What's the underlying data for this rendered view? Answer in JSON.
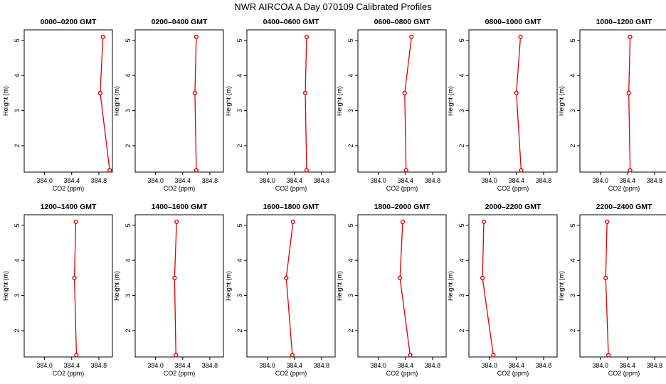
{
  "figure": {
    "title": "NWR AIRCOA A  Day 070109  Calibrated Profiles"
  },
  "chart_data": [
    {
      "type": "line",
      "title": "0000–0200 GMT",
      "xlabel": "CO2 (ppm)",
      "ylabel": "Height (m)",
      "xlim": [
        383.7,
        385.0
      ],
      "ylim": [
        1.25,
        5.3
      ],
      "xticks": [
        "384.0",
        "384.4",
        "384.8"
      ],
      "yticks": [
        "2",
        "3",
        "4",
        "5"
      ],
      "series": [
        {
          "x": [
            384.86,
            384.82,
            384.96
          ],
          "y": [
            5.1,
            3.5,
            1.3
          ]
        }
      ]
    },
    {
      "type": "line",
      "title": "0200–0400 GMT",
      "xlabel": "CO2 (ppm)",
      "ylabel": "Height (m)",
      "xlim": [
        383.7,
        385.0
      ],
      "ylim": [
        1.25,
        5.3
      ],
      "xticks": [
        "384.0",
        "384.4",
        "384.8"
      ],
      "yticks": [
        "2",
        "3",
        "4",
        "5"
      ],
      "series": [
        {
          "x": [
            384.6,
            384.58,
            384.6
          ],
          "y": [
            5.1,
            3.5,
            1.3
          ]
        }
      ]
    },
    {
      "type": "line",
      "title": "0400–0600 GMT",
      "xlabel": "CO2 (ppm)",
      "ylabel": "Height (m)",
      "xlim": [
        383.7,
        385.0
      ],
      "ylim": [
        1.25,
        5.3
      ],
      "xticks": [
        "384.0",
        "384.4",
        "384.8"
      ],
      "yticks": [
        "2",
        "3",
        "4",
        "5"
      ],
      "series": [
        {
          "x": [
            384.58,
            384.56,
            384.58
          ],
          "y": [
            5.1,
            3.5,
            1.3
          ]
        }
      ]
    },
    {
      "type": "line",
      "title": "0600–0800 GMT",
      "xlabel": "CO2 (ppm)",
      "ylabel": "Height (m)",
      "xlim": [
        383.7,
        385.0
      ],
      "ylim": [
        1.25,
        5.3
      ],
      "xticks": [
        "384.0",
        "384.4",
        "384.8"
      ],
      "yticks": [
        "2",
        "3",
        "4",
        "5"
      ],
      "series": [
        {
          "x": [
            384.49,
            384.39,
            384.41
          ],
          "y": [
            5.1,
            3.5,
            1.3
          ]
        }
      ]
    },
    {
      "type": "line",
      "title": "0800–1000 GMT",
      "xlabel": "CO2 (ppm)",
      "ylabel": "Height (m)",
      "xlim": [
        383.7,
        385.0
      ],
      "ylim": [
        1.25,
        5.3
      ],
      "xticks": [
        "384.0",
        "384.4",
        "384.8"
      ],
      "yticks": [
        "2",
        "3",
        "4",
        "5"
      ],
      "series": [
        {
          "x": [
            384.46,
            384.4,
            384.47
          ],
          "y": [
            5.1,
            3.5,
            1.3
          ]
        }
      ]
    },
    {
      "type": "line",
      "title": "1000–1200 GMT",
      "xlabel": "CO2 (ppm)",
      "ylabel": "Height (m)",
      "xlim": [
        383.7,
        385.0
      ],
      "ylim": [
        1.25,
        5.3
      ],
      "xticks": [
        "384.0",
        "384.4",
        "384.8"
      ],
      "yticks": [
        "2",
        "3",
        "4",
        "5"
      ],
      "series": [
        {
          "x": [
            384.44,
            384.42,
            384.44
          ],
          "y": [
            5.1,
            3.5,
            1.3
          ]
        }
      ]
    },
    {
      "type": "line",
      "title": "1200–1400 GMT",
      "xlabel": "CO2 (ppm)",
      "ylabel": "Height (m)",
      "xlim": [
        383.7,
        385.0
      ],
      "ylim": [
        1.25,
        5.3
      ],
      "xticks": [
        "384.0",
        "384.4",
        "384.8"
      ],
      "yticks": [
        "2",
        "3",
        "4",
        "5"
      ],
      "series": [
        {
          "x": [
            384.46,
            384.44,
            384.47
          ],
          "y": [
            5.1,
            3.5,
            1.3
          ]
        }
      ]
    },
    {
      "type": "line",
      "title": "1400–1600 GMT",
      "xlabel": "CO2 (ppm)",
      "ylabel": "Height (m)",
      "xlim": [
        383.7,
        385.0
      ],
      "ylim": [
        1.25,
        5.3
      ],
      "xticks": [
        "384.0",
        "384.4",
        "384.8"
      ],
      "yticks": [
        "2",
        "3",
        "4",
        "5"
      ],
      "series": [
        {
          "x": [
            384.31,
            384.28,
            384.3
          ],
          "y": [
            5.1,
            3.5,
            1.3
          ]
        }
      ]
    },
    {
      "type": "line",
      "title": "1600–1800 GMT",
      "xlabel": "CO2 (ppm)",
      "ylabel": "Height (m)",
      "xlim": [
        383.7,
        385.0
      ],
      "ylim": [
        1.25,
        5.3
      ],
      "xticks": [
        "384.0",
        "384.4",
        "384.8"
      ],
      "yticks": [
        "2",
        "3",
        "4",
        "5"
      ],
      "series": [
        {
          "x": [
            384.38,
            384.28,
            384.37
          ],
          "y": [
            5.1,
            3.5,
            1.3
          ]
        }
      ]
    },
    {
      "type": "line",
      "title": "1800–2000 GMT",
      "xlabel": "CO2 (ppm)",
      "ylabel": "Height (m)",
      "xlim": [
        383.7,
        385.0
      ],
      "ylim": [
        1.25,
        5.3
      ],
      "xticks": [
        "384.0",
        "384.4",
        "384.8"
      ],
      "yticks": [
        "2",
        "3",
        "4",
        "5"
      ],
      "series": [
        {
          "x": [
            384.36,
            384.32,
            384.47
          ],
          "y": [
            5.1,
            3.5,
            1.3
          ]
        }
      ]
    },
    {
      "type": "line",
      "title": "2000–2200 GMT",
      "xlabel": "CO2 (ppm)",
      "ylabel": "Height (m)",
      "xlim": [
        383.7,
        385.0
      ],
      "ylim": [
        1.25,
        5.3
      ],
      "xticks": [
        "384.0",
        "384.4",
        "384.8"
      ],
      "yticks": [
        "2",
        "3",
        "4",
        "5"
      ],
      "series": [
        {
          "x": [
            383.92,
            383.9,
            384.06
          ],
          "y": [
            5.1,
            3.5,
            1.3
          ]
        }
      ]
    },
    {
      "type": "line",
      "title": "2200–2400 GMT",
      "xlabel": "CO2 (ppm)",
      "ylabel": "Height (m)",
      "xlim": [
        383.7,
        385.0
      ],
      "ylim": [
        1.25,
        5.3
      ],
      "xticks": [
        "384.0",
        "384.4",
        "384.8"
      ],
      "yticks": [
        "2",
        "3",
        "4",
        "5"
      ],
      "series": [
        {
          "x": [
            384.1,
            384.08,
            384.12
          ],
          "y": [
            5.1,
            3.5,
            1.3
          ]
        }
      ]
    }
  ],
  "colors": {
    "series": "#dd0000",
    "marker_fill": "#ffffff",
    "axes": "#000000"
  }
}
